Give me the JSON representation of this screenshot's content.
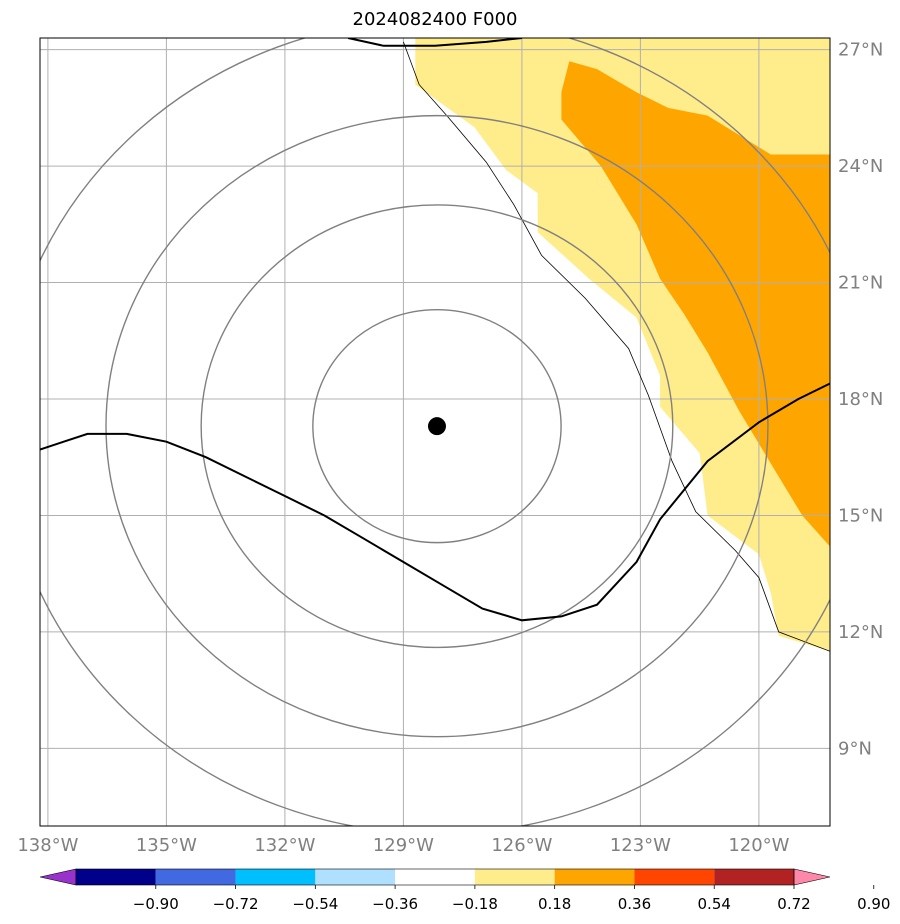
{
  "title": "2024082400 F000",
  "map": {
    "lon_range": [
      -138.2,
      -118.2
    ],
    "lat_range": [
      7.0,
      27.3
    ],
    "lon_ticks": [
      {
        "value": -138,
        "label": "138°W"
      },
      {
        "value": -135,
        "label": "135°W"
      },
      {
        "value": -132,
        "label": "132°W"
      },
      {
        "value": -129,
        "label": "129°W"
      },
      {
        "value": -126,
        "label": "126°W"
      },
      {
        "value": -123,
        "label": "123°W"
      },
      {
        "value": -120,
        "label": "120°W"
      }
    ],
    "lat_ticks": [
      {
        "value": 9,
        "label": "9°N"
      },
      {
        "value": 12,
        "label": "12°N"
      },
      {
        "value": 15,
        "label": "15°N"
      },
      {
        "value": 18,
        "label": "18°N"
      },
      {
        "value": 21,
        "label": "21°N"
      },
      {
        "value": 24,
        "label": "24°N"
      },
      {
        "value": 27,
        "label": "27°N"
      }
    ],
    "center": {
      "lon": -128.15,
      "lat": 17.3
    },
    "range_rings_deg_lat": [
      3.0,
      5.7,
      8.0,
      10.5
    ],
    "colors": {
      "grid": "#b0b0b0",
      "ring": "#808080",
      "shade_low": "#ffec8b",
      "shade_mid": "#ffa500",
      "track": "#000000"
    }
  },
  "colorbar": {
    "labels": [
      "−0.90",
      "−0.72",
      "−0.54",
      "−0.36",
      "−0.18",
      "0.18",
      "0.36",
      "0.54",
      "0.72",
      "0.90"
    ],
    "colors": [
      "#9932cc",
      "#00008b",
      "#4169e1",
      "#00bfff",
      "#b0e0ff",
      "#ffffff",
      "#ffec8b",
      "#ffa500",
      "#ff4500",
      "#b22222",
      "#ff88aa"
    ]
  }
}
